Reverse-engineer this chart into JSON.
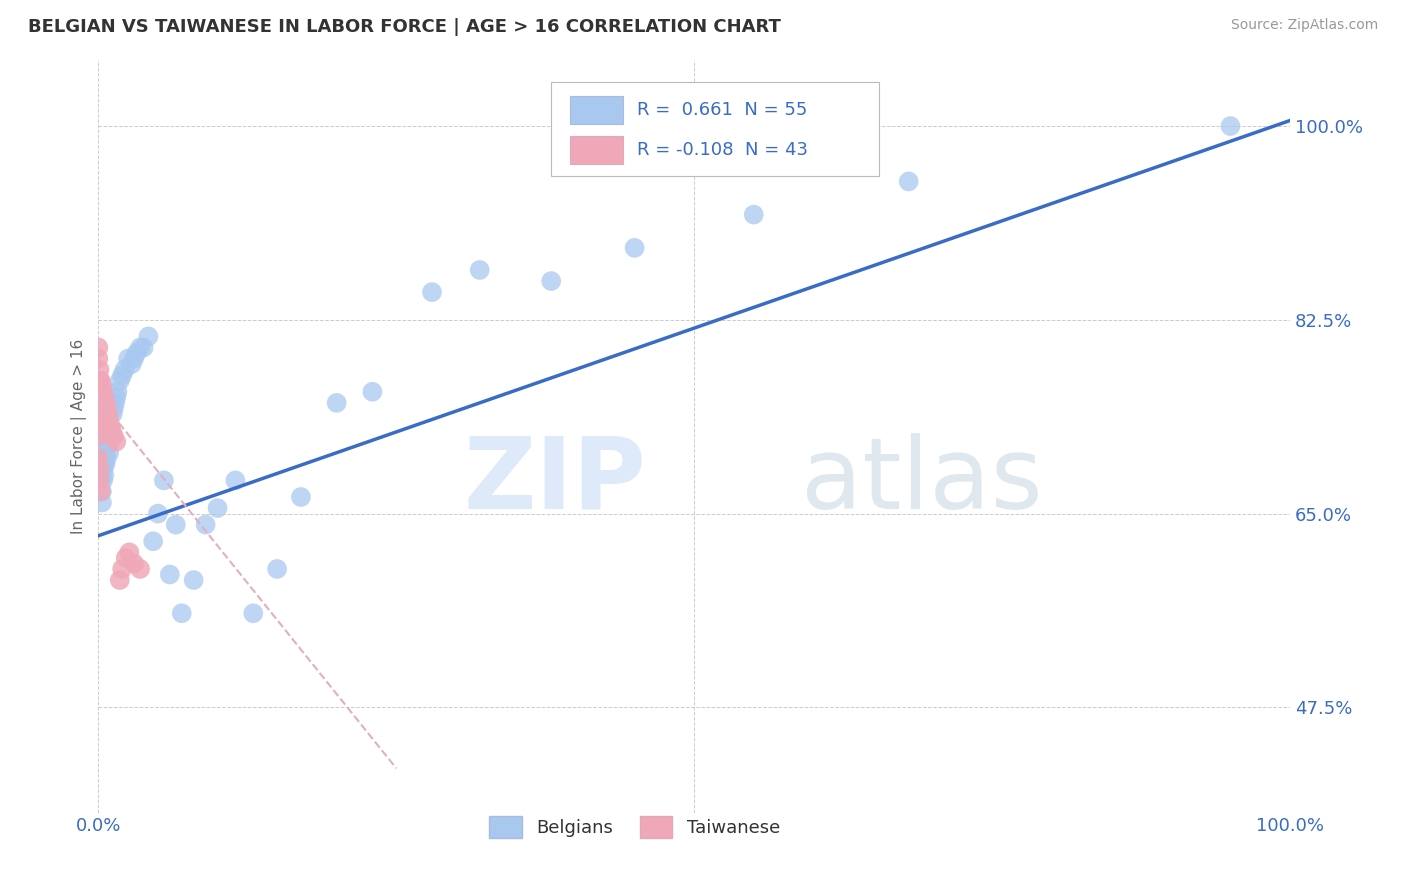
{
  "title": "BELGIAN VS TAIWANESE IN LABOR FORCE | AGE > 16 CORRELATION CHART",
  "source": "Source: ZipAtlas.com",
  "ylabel": "In Labor Force | Age > 16",
  "xlim": [
    0.0,
    1.0
  ],
  "ylim": [
    0.38,
    1.06
  ],
  "ytick_labels": [
    "47.5%",
    "65.0%",
    "82.5%",
    "100.0%"
  ],
  "ytick_positions": [
    0.475,
    0.65,
    0.825,
    1.0
  ],
  "legend_r_belgian": "0.661",
  "legend_n_belgian": "55",
  "legend_r_taiwanese": "-0.108",
  "legend_n_taiwanese": "43",
  "belgian_color": "#a8c8f0",
  "taiwanese_color": "#f0a8b8",
  "trend_belgian_color": "#3a6cc6",
  "trend_taiwanese_color": "#e0b0c0",
  "background_color": "#ffffff",
  "grid_color": "#cccccc",
  "belgian_x": [
    0.002,
    0.003,
    0.003,
    0.004,
    0.004,
    0.005,
    0.005,
    0.005,
    0.006,
    0.006,
    0.007,
    0.007,
    0.008,
    0.008,
    0.009,
    0.01,
    0.01,
    0.011,
    0.012,
    0.013,
    0.014,
    0.015,
    0.016,
    0.018,
    0.02,
    0.022,
    0.025,
    0.028,
    0.03,
    0.032,
    0.035,
    0.038,
    0.042,
    0.046,
    0.05,
    0.055,
    0.06,
    0.065,
    0.07,
    0.08,
    0.09,
    0.1,
    0.115,
    0.13,
    0.15,
    0.17,
    0.2,
    0.23,
    0.28,
    0.32,
    0.38,
    0.45,
    0.55,
    0.68,
    0.95
  ],
  "belgian_y": [
    0.68,
    0.67,
    0.66,
    0.69,
    0.68,
    0.7,
    0.695,
    0.685,
    0.705,
    0.695,
    0.71,
    0.7,
    0.72,
    0.715,
    0.705,
    0.72,
    0.715,
    0.725,
    0.74,
    0.745,
    0.75,
    0.755,
    0.76,
    0.77,
    0.775,
    0.78,
    0.79,
    0.785,
    0.79,
    0.795,
    0.8,
    0.8,
    0.81,
    0.625,
    0.65,
    0.68,
    0.595,
    0.64,
    0.56,
    0.59,
    0.64,
    0.655,
    0.68,
    0.56,
    0.6,
    0.665,
    0.75,
    0.76,
    0.85,
    0.87,
    0.86,
    0.89,
    0.92,
    0.95,
    1.0
  ],
  "taiwanese_x": [
    0.0,
    0.0,
    0.0,
    0.001,
    0.001,
    0.001,
    0.001,
    0.001,
    0.002,
    0.002,
    0.002,
    0.002,
    0.002,
    0.003,
    0.003,
    0.003,
    0.003,
    0.003,
    0.004,
    0.004,
    0.004,
    0.005,
    0.005,
    0.006,
    0.006,
    0.007,
    0.008,
    0.009,
    0.01,
    0.011,
    0.013,
    0.015,
    0.018,
    0.02,
    0.023,
    0.026,
    0.03,
    0.035,
    0.0,
    0.0,
    0.001,
    0.001,
    0.002
  ],
  "taiwanese_y": [
    0.8,
    0.79,
    0.76,
    0.78,
    0.77,
    0.76,
    0.75,
    0.74,
    0.77,
    0.76,
    0.75,
    0.74,
    0.73,
    0.765,
    0.755,
    0.745,
    0.735,
    0.725,
    0.76,
    0.75,
    0.74,
    0.755,
    0.745,
    0.75,
    0.74,
    0.745,
    0.74,
    0.735,
    0.73,
    0.725,
    0.72,
    0.715,
    0.59,
    0.6,
    0.61,
    0.615,
    0.605,
    0.6,
    0.72,
    0.7,
    0.69,
    0.68,
    0.67
  ],
  "taiwanese_trendline_x0": 0.0,
  "taiwanese_trendline_x1": 0.25,
  "taiwanese_trendline_y0": 0.755,
  "taiwanese_trendline_y1": 0.42,
  "belgian_trendline_x0": 0.0,
  "belgian_trendline_x1": 1.0,
  "belgian_trendline_y0": 0.63,
  "belgian_trendline_y1": 1.005
}
